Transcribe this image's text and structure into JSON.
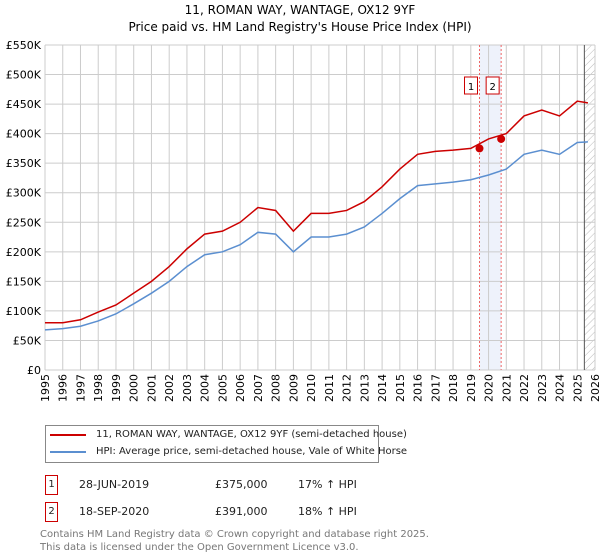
{
  "chart_data": {
    "type": "line",
    "title": "11, ROMAN WAY, WANTAGE, OX12 9YF",
    "subtitle": "Price paid vs. HM Land Registry's House Price Index (HPI)",
    "xlim": [
      1995,
      2026
    ],
    "ylim": [
      0,
      550000
    ],
    "x_ticks": [
      "1995",
      "1996",
      "1997",
      "1998",
      "1999",
      "2000",
      "2001",
      "2002",
      "2003",
      "2004",
      "2005",
      "2006",
      "2007",
      "2008",
      "2009",
      "2010",
      "2011",
      "2012",
      "2013",
      "2014",
      "2015",
      "2016",
      "2017",
      "2018",
      "2019",
      "2020",
      "2021",
      "2022",
      "2023",
      "2024",
      "2025",
      "2026"
    ],
    "y_ticks": [
      {
        "v": 0,
        "label": "£0"
      },
      {
        "v": 50000,
        "label": "£50K"
      },
      {
        "v": 100000,
        "label": "£100K"
      },
      {
        "v": 150000,
        "label": "£150K"
      },
      {
        "v": 200000,
        "label": "£200K"
      },
      {
        "v": 250000,
        "label": "£250K"
      },
      {
        "v": 300000,
        "label": "£300K"
      },
      {
        "v": 350000,
        "label": "£350K"
      },
      {
        "v": 400000,
        "label": "£400K"
      },
      {
        "v": 450000,
        "label": "£450K"
      },
      {
        "v": 500000,
        "label": "£500K"
      },
      {
        "v": 550000,
        "label": "£550K"
      }
    ],
    "grid": true,
    "x": [
      1995,
      1996,
      1997,
      1998,
      1999,
      2000,
      2001,
      2002,
      2003,
      2004,
      2005,
      2006,
      2007,
      2008,
      2009,
      2010,
      2011,
      2012,
      2013,
      2014,
      2015,
      2016,
      2017,
      2018,
      2019,
      2020,
      2021,
      2022,
      2023,
      2024,
      2025,
      2025.6
    ],
    "series": [
      {
        "name": "11, ROMAN WAY, WANTAGE, OX12 9YF (semi-detached house)",
        "color": "#cc0000",
        "values": [
          80000,
          80000,
          85000,
          98000,
          110000,
          130000,
          150000,
          175000,
          205000,
          230000,
          235000,
          250000,
          275000,
          270000,
          235000,
          265000,
          265000,
          270000,
          285000,
          310000,
          340000,
          365000,
          370000,
          372000,
          375000,
          391000,
          400000,
          430000,
          440000,
          430000,
          455000,
          452000
        ]
      },
      {
        "name": "HPI: Average price, semi-detached house, Vale of White Horse",
        "color": "#5b8fd0",
        "values": [
          68000,
          70000,
          74000,
          83000,
          95000,
          112000,
          130000,
          150000,
          175000,
          195000,
          200000,
          212000,
          233000,
          230000,
          200000,
          225000,
          225000,
          230000,
          242000,
          265000,
          290000,
          312000,
          315000,
          318000,
          322000,
          330000,
          340000,
          365000,
          372000,
          365000,
          385000,
          386000
        ]
      }
    ],
    "sales": [
      {
        "id": "1",
        "x": 2019.49,
        "y": 375000,
        "date": "28-JUN-2019",
        "price": "£375,000",
        "hpi": "17% ↑ HPI"
      },
      {
        "id": "2",
        "x": 2020.71,
        "y": 391000,
        "date": "18-SEP-2020",
        "price": "£391,000",
        "hpi": "18% ↑ HPI"
      }
    ],
    "forecast_start": 2025.4
  },
  "footer": {
    "line1": "Contains HM Land Registry data © Crown copyright and database right 2025.",
    "line2": "This data is licensed under the Open Government Licence v3.0."
  }
}
